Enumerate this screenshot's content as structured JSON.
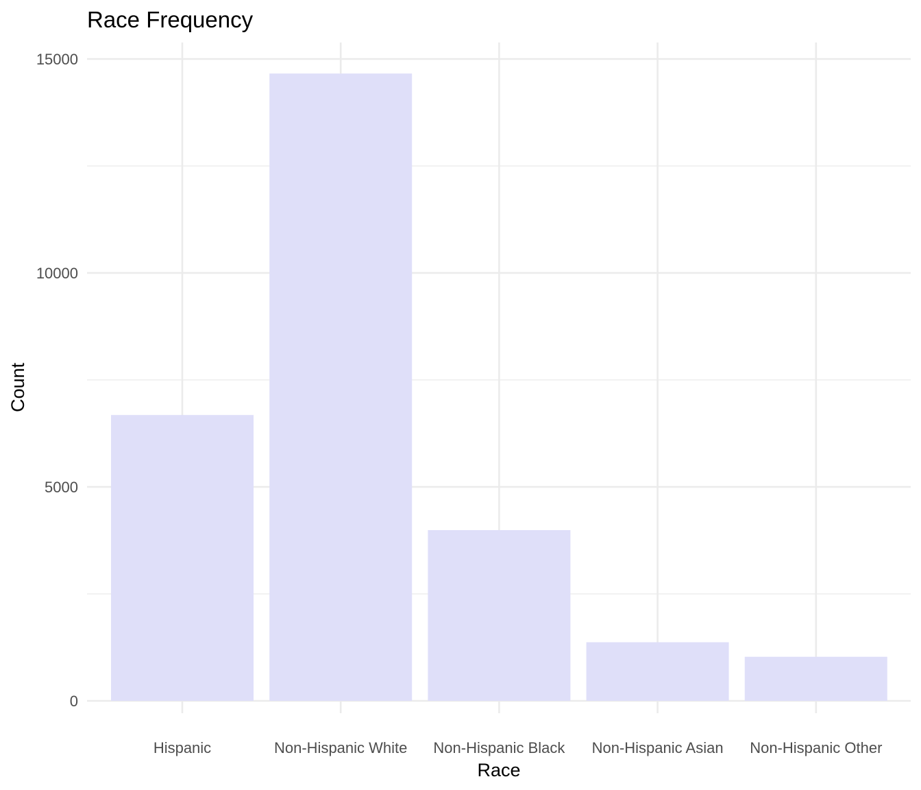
{
  "chart_data": {
    "type": "bar",
    "title": "Race Frequency",
    "xlabel": "Race",
    "ylabel": "Count",
    "categories": [
      "Hispanic",
      "Non-Hispanic White",
      "Non-Hispanic Black",
      "Non-Hispanic Asian",
      "Non-Hispanic Other"
    ],
    "values": [
      6680,
      14660,
      3990,
      1370,
      1030
    ],
    "ylim": [
      0,
      15300
    ],
    "yticks": [
      0,
      5000,
      10000,
      15000
    ],
    "ytick_labels": [
      "0",
      "5000",
      "10000",
      "15000"
    ],
    "minor_yticks": [
      2500,
      7500,
      12500
    ],
    "grid": true,
    "legend": "none",
    "bar_color": "#dfdff9",
    "grid_color": "#ebebeb",
    "tick_label_color": "#4d4d4d"
  }
}
